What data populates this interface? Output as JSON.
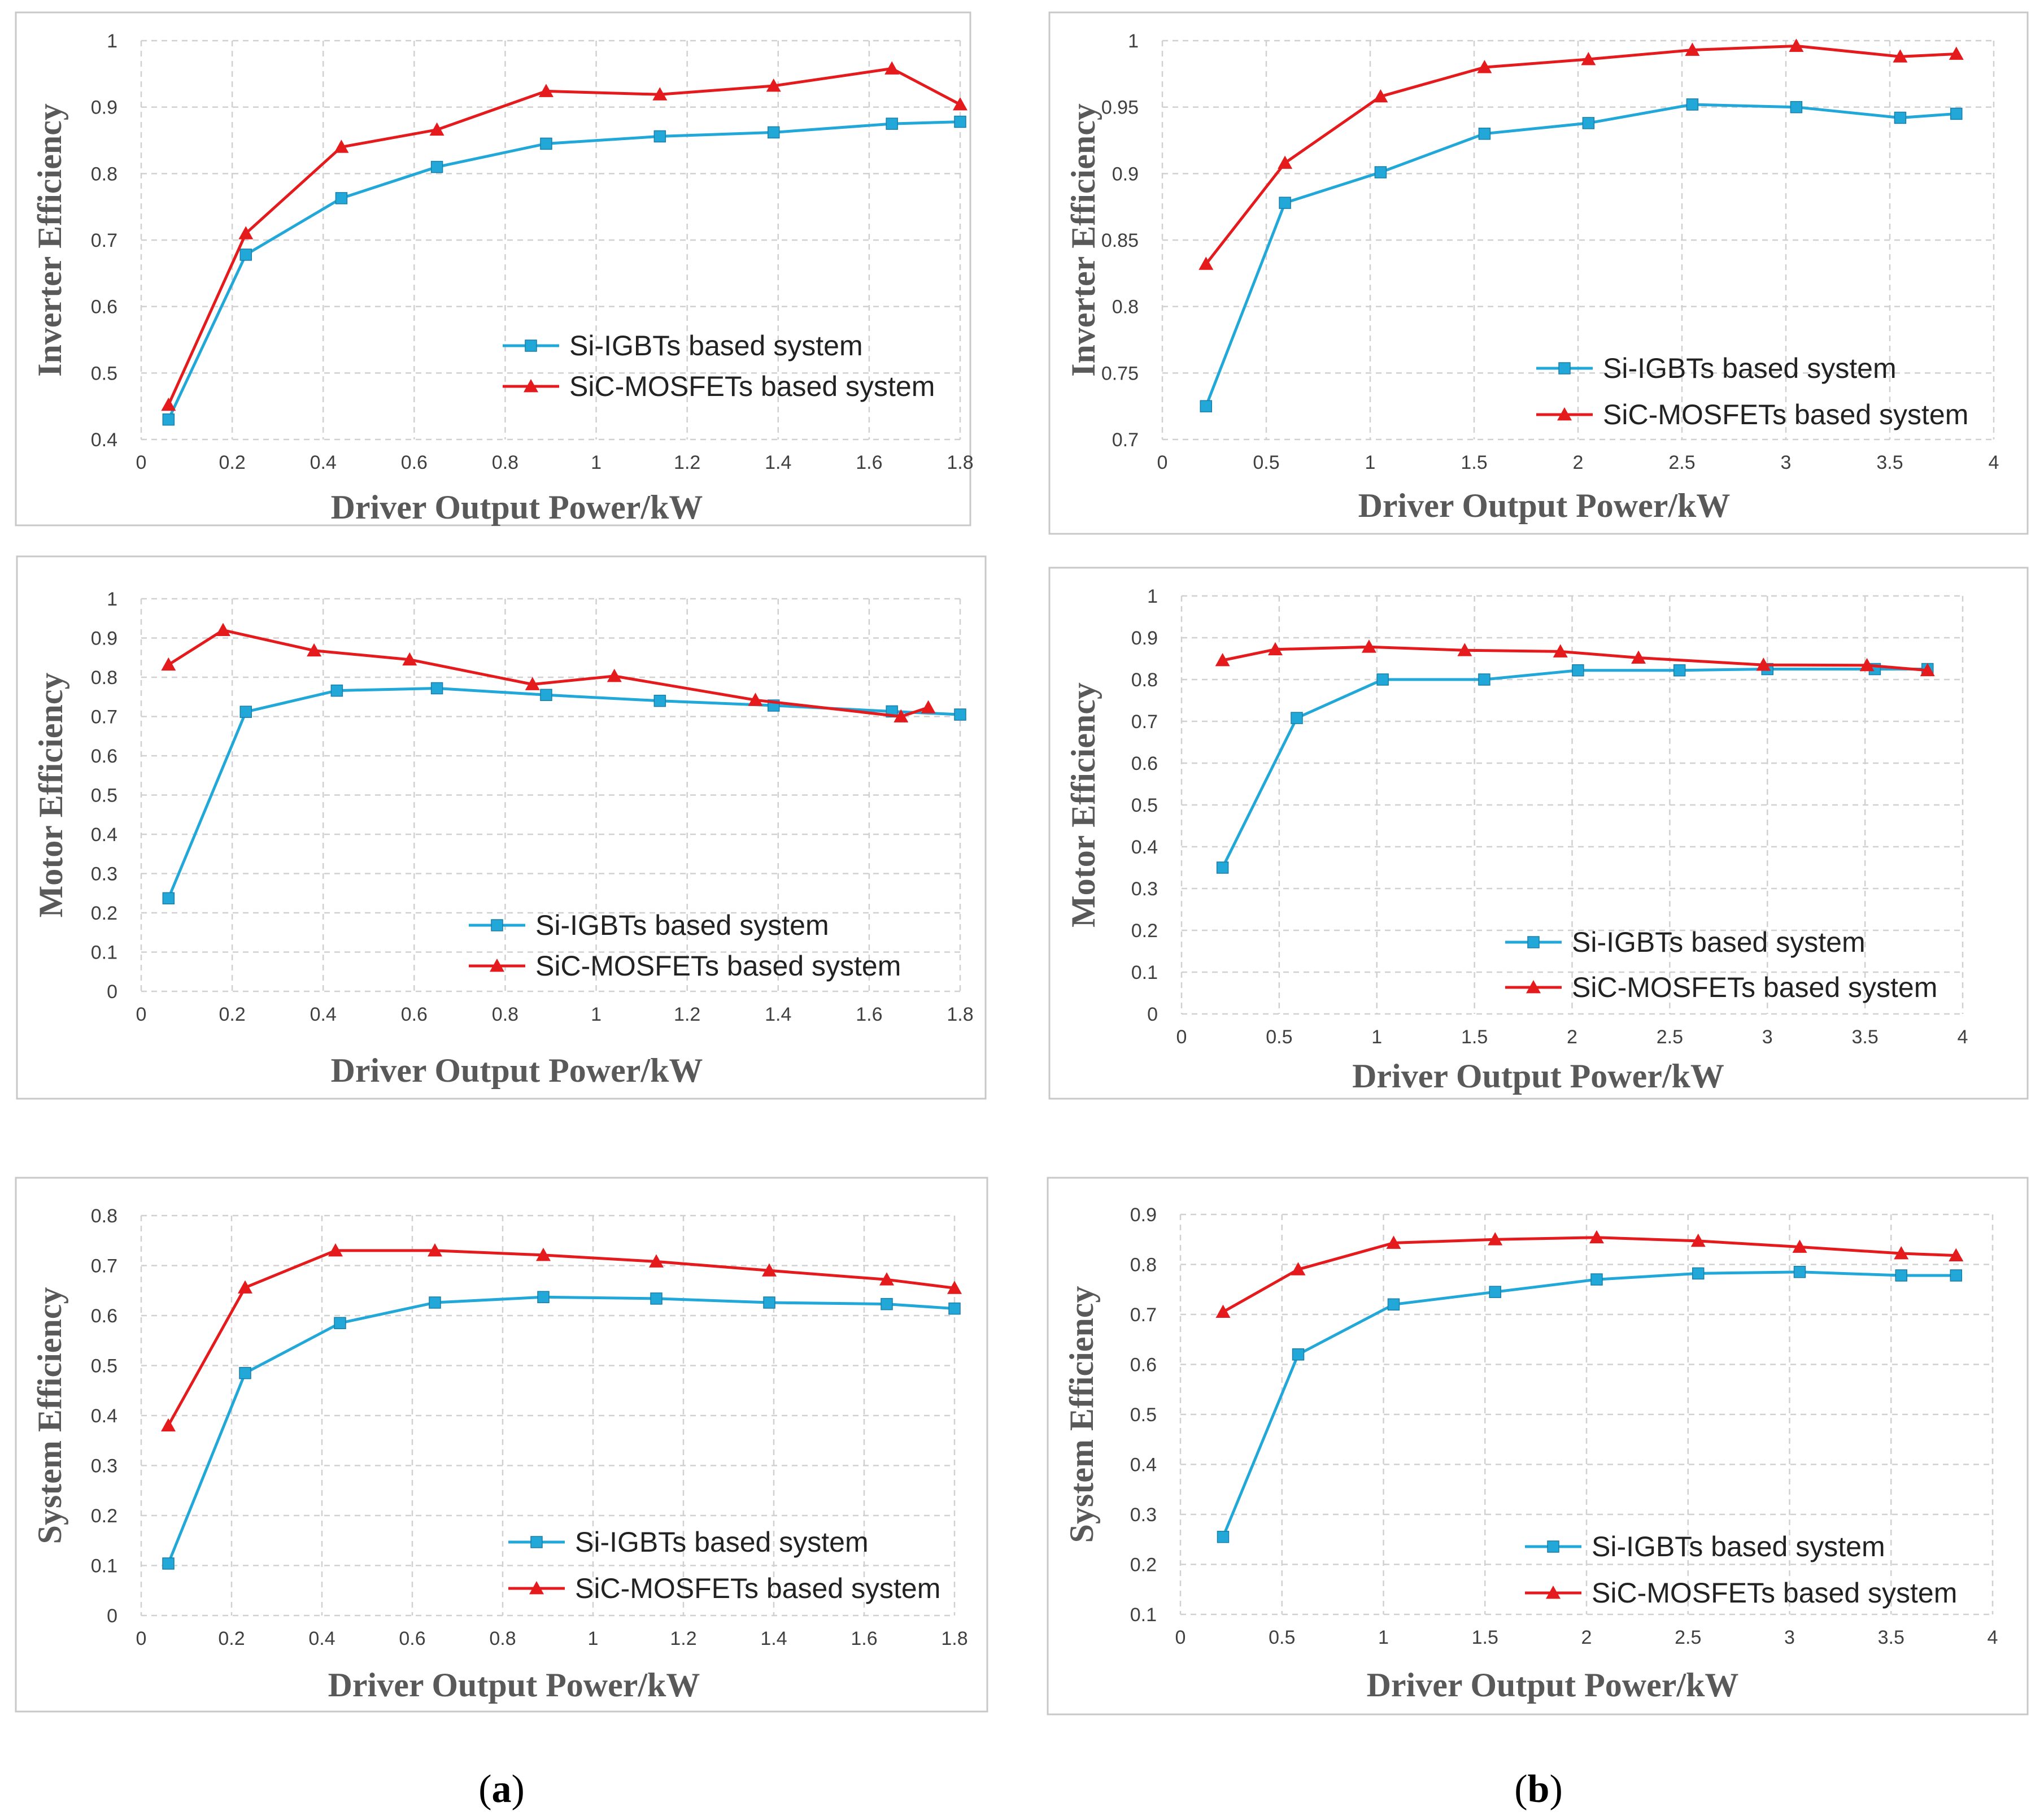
{
  "colors": {
    "si": "#22a8d8",
    "sic": "#e41a1c",
    "grid": "#d0d0d0",
    "border": "#c8c8c8"
  },
  "captions": {
    "a": "a",
    "b": "b"
  },
  "chart_data": [
    {
      "id": "a-inverter",
      "type": "line",
      "ylabel": "Inverter Efficiency",
      "xlabel": "Driver Output  Power/kW",
      "xlim": [
        0,
        1.8
      ],
      "xticks": [
        "0",
        "0.2",
        "0.4",
        "0.6",
        "0.8",
        "1",
        "1.2",
        "1.4",
        "1.6",
        "1.8"
      ],
      "ylim": [
        0.4,
        1
      ],
      "yticks": [
        "0.4",
        "0.5",
        "0.6",
        "0.7",
        "0.8",
        "0.9",
        "1"
      ],
      "legend": "bottom-right",
      "series": [
        {
          "name": "Si-IGBTs based system",
          "marker": "square",
          "x": [
            0.06,
            0.23,
            0.44,
            0.65,
            0.89,
            1.14,
            1.39,
            1.65,
            1.8
          ],
          "y": [
            0.43,
            0.678,
            0.763,
            0.81,
            0.845,
            0.856,
            0.862,
            0.875,
            0.878
          ]
        },
        {
          "name": "SiC-MOSFETs based system",
          "marker": "triangle",
          "x": [
            0.06,
            0.23,
            0.44,
            0.65,
            0.89,
            1.14,
            1.39,
            1.65,
            1.8
          ],
          "y": [
            0.452,
            0.71,
            0.84,
            0.866,
            0.924,
            0.919,
            0.932,
            0.958,
            0.904
          ]
        }
      ]
    },
    {
      "id": "b-inverter",
      "type": "line",
      "ylabel": "Inverter Efficiency",
      "xlabel": "Driver Output  Power/kW",
      "xlim": [
        0,
        4
      ],
      "xticks": [
        "0",
        "0.5",
        "1",
        "1.5",
        "2",
        "2.5",
        "3",
        "3.5",
        "4"
      ],
      "ylim": [
        0.7,
        1
      ],
      "yticks": [
        "0.7",
        "0.75",
        "0.8",
        "0.85",
        "0.9",
        "0.95",
        "1"
      ],
      "legend": "bottom-right",
      "series": [
        {
          "name": "Si-IGBTs based system",
          "marker": "square",
          "x": [
            0.21,
            0.59,
            1.05,
            1.55,
            2.05,
            2.55,
            3.05,
            3.55,
            3.82
          ],
          "y": [
            0.725,
            0.878,
            0.901,
            0.93,
            0.938,
            0.952,
            0.95,
            0.942,
            0.945
          ]
        },
        {
          "name": "SiC-MOSFETs based system",
          "marker": "triangle",
          "x": [
            0.21,
            0.59,
            1.05,
            1.55,
            2.05,
            2.55,
            3.05,
            3.55,
            3.82
          ],
          "y": [
            0.832,
            0.908,
            0.958,
            0.98,
            0.986,
            0.993,
            0.996,
            0.988,
            0.99
          ]
        }
      ]
    },
    {
      "id": "a-motor",
      "type": "line",
      "ylabel": "Motor Efficiency",
      "xlabel": "Driver Output  Power/kW",
      "xlim": [
        0,
        1.8
      ],
      "xticks": [
        "0",
        "0.2",
        "0.4",
        "0.6",
        "0.8",
        "1",
        "1.2",
        "1.4",
        "1.6",
        "1.8"
      ],
      "ylim": [
        0,
        1
      ],
      "yticks": [
        "0",
        "0.1",
        "0.2",
        "0.3",
        "0.4",
        "0.5",
        "0.6",
        "0.7",
        "0.8",
        "0.9",
        "1"
      ],
      "legend": "bottom-right",
      "series": [
        {
          "name": "Si-IGBTs based system",
          "marker": "square",
          "x": [
            0.06,
            0.23,
            0.43,
            0.65,
            0.89,
            1.14,
            1.39,
            1.65,
            1.8
          ],
          "y": [
            0.237,
            0.712,
            0.766,
            0.772,
            0.755,
            0.74,
            0.728,
            0.713,
            0.705
          ]
        },
        {
          "name": "SiC-MOSFETs based system",
          "marker": "triangle",
          "x": [
            0.06,
            0.18,
            0.38,
            0.59,
            0.86,
            1.04,
            1.35,
            1.67,
            1.73
          ],
          "y": [
            0.832,
            0.92,
            0.868,
            0.845,
            0.782,
            0.803,
            0.742,
            0.7,
            0.723
          ]
        }
      ]
    },
    {
      "id": "b-motor",
      "type": "line",
      "ylabel": "Motor Efficiency",
      "xlabel": "Driver Output  Power/kW",
      "xlim": [
        0,
        4
      ],
      "xticks": [
        "0",
        "0.5",
        "1",
        "1.5",
        "2",
        "2.5",
        "3",
        "3.5",
        "4"
      ],
      "ylim": [
        0,
        1
      ],
      "yticks": [
        "0",
        "0.1",
        "0.2",
        "0.3",
        "0.4",
        "0.5",
        "0.6",
        "0.7",
        "0.8",
        "0.9",
        "1"
      ],
      "legend": "bottom-right",
      "series": [
        {
          "name": "Si-IGBTs based system",
          "marker": "square",
          "x": [
            0.21,
            0.59,
            1.03,
            1.55,
            2.03,
            2.55,
            3.0,
            3.55,
            3.82
          ],
          "y": [
            0.35,
            0.708,
            0.8,
            0.8,
            0.822,
            0.822,
            0.825,
            0.825,
            0.825
          ]
        },
        {
          "name": "SiC-MOSFETs based system",
          "marker": "triangle",
          "x": [
            0.21,
            0.48,
            0.96,
            1.45,
            1.94,
            2.34,
            2.98,
            3.51,
            3.82
          ],
          "y": [
            0.846,
            0.872,
            0.878,
            0.87,
            0.867,
            0.852,
            0.835,
            0.834,
            0.822
          ]
        }
      ]
    },
    {
      "id": "a-system",
      "type": "line",
      "ylabel": "System Efficiency",
      "xlabel": "Driver Output  Power/kW",
      "xlim": [
        0,
        1.8
      ],
      "xticks": [
        "0",
        "0.2",
        "0.4",
        "0.6",
        "0.8",
        "1",
        "1.2",
        "1.4",
        "1.6",
        "1.8"
      ],
      "ylim": [
        0,
        0.8
      ],
      "yticks": [
        "0",
        "0.1",
        "0.2",
        "0.3",
        "0.4",
        "0.5",
        "0.6",
        "0.7",
        "0.8"
      ],
      "legend": "bottom-right",
      "series": [
        {
          "name": "Si-IGBTs based system",
          "marker": "square",
          "x": [
            0.06,
            0.23,
            0.44,
            0.65,
            0.89,
            1.14,
            1.39,
            1.65,
            1.8
          ],
          "y": [
            0.104,
            0.485,
            0.585,
            0.626,
            0.637,
            0.634,
            0.626,
            0.623,
            0.614
          ]
        },
        {
          "name": "SiC-MOSFETs based system",
          "marker": "triangle",
          "x": [
            0.06,
            0.23,
            0.43,
            0.65,
            0.89,
            1.14,
            1.39,
            1.65,
            1.8
          ],
          "y": [
            0.38,
            0.656,
            0.73,
            0.73,
            0.721,
            0.708,
            0.69,
            0.672,
            0.655
          ]
        }
      ]
    },
    {
      "id": "b-system",
      "type": "line",
      "ylabel": "System Efficiency",
      "xlabel": "Driver Output  Power/kW",
      "xlim": [
        0,
        4
      ],
      "xticks": [
        "0",
        "0.5",
        "1",
        "1.5",
        "2",
        "2.5",
        "3",
        "3.5",
        "4"
      ],
      "ylim": [
        0.1,
        0.9
      ],
      "yticks": [
        "0.1",
        "0.2",
        "0.3",
        "0.4",
        "0.5",
        "0.6",
        "0.7",
        "0.8",
        "0.9"
      ],
      "legend": "bottom-right",
      "series": [
        {
          "name": "Si-IGBTs based system",
          "marker": "square",
          "x": [
            0.21,
            0.58,
            1.05,
            1.55,
            2.05,
            2.55,
            3.05,
            3.55,
            3.82
          ],
          "y": [
            0.255,
            0.62,
            0.72,
            0.745,
            0.77,
            0.782,
            0.785,
            0.778,
            0.778
          ]
        },
        {
          "name": "SiC-MOSFETs based system",
          "marker": "triangle",
          "x": [
            0.21,
            0.58,
            1.05,
            1.55,
            2.05,
            2.55,
            3.05,
            3.55,
            3.82
          ],
          "y": [
            0.705,
            0.79,
            0.843,
            0.85,
            0.854,
            0.847,
            0.835,
            0.822,
            0.818
          ]
        }
      ]
    }
  ]
}
